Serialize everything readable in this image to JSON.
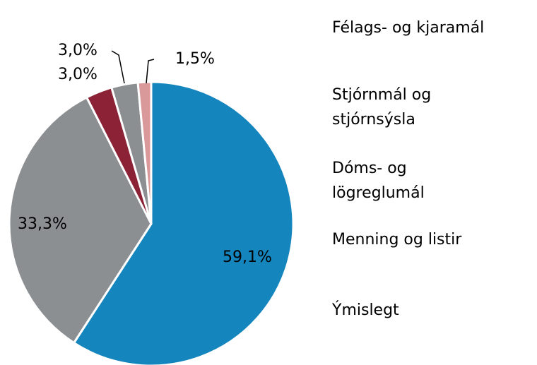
{
  "chart_data": {
    "type": "pie",
    "series": [
      {
        "name": "Félags- og kjaramál",
        "color": "#1585be",
        "values": [
          59.1
        ],
        "value_labels": [
          "59,1%"
        ]
      },
      {
        "name": "Stjórnmál og stjórnsýsla",
        "color": "#8c8f92",
        "values": [
          33.3
        ],
        "value_labels": [
          "33,3%"
        ]
      },
      {
        "name": "Dóms- og lögreglumál",
        "color": "#8b2236",
        "values": [
          3.0
        ],
        "value_labels": [
          "3,0%"
        ]
      },
      {
        "name": "Menning og listir",
        "color": "#8c8f92",
        "values": [
          3.0
        ],
        "value_labels": [
          "3,0%"
        ]
      },
      {
        "name": "Ýmislegt",
        "color": "#d9999b",
        "values": [
          1.5
        ],
        "value_labels": [
          "1,5%"
        ]
      }
    ],
    "legend": "right"
  }
}
